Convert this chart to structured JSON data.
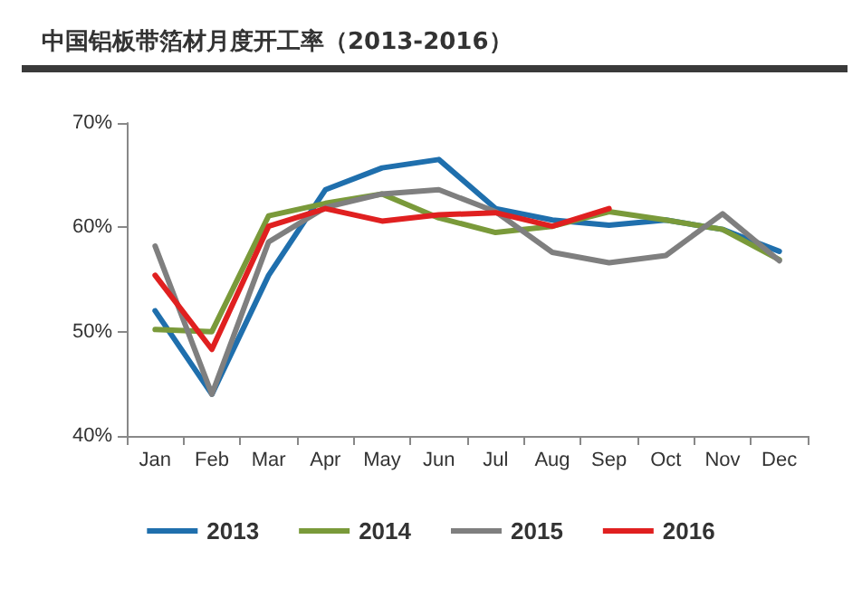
{
  "chart_data": {
    "type": "line",
    "title": "中国铝板带箔材月度开工率（2013-2016）",
    "categories": [
      "Jan",
      "Feb",
      "Mar",
      "Apr",
      "May",
      "Jun",
      "Jul",
      "Aug",
      "Sep",
      "Oct",
      "Nov",
      "Dec"
    ],
    "series": [
      {
        "name": "2013",
        "color": "#1f6fad",
        "values": [
          52.0,
          44.0,
          55.4,
          63.6,
          65.7,
          66.5,
          61.8,
          60.7,
          60.2,
          60.7,
          59.8,
          57.7
        ]
      },
      {
        "name": "2014",
        "color": "#7a9a3a",
        "values": [
          50.2,
          50.0,
          61.1,
          62.3,
          63.2,
          60.9,
          59.5,
          60.1,
          61.5,
          60.7,
          59.8,
          56.9
        ]
      },
      {
        "name": "2015",
        "color": "#7f7f7f",
        "values": [
          58.2,
          44.0,
          58.6,
          61.9,
          63.2,
          63.6,
          61.5,
          57.6,
          56.6,
          57.3,
          61.3,
          56.8
        ]
      },
      {
        "name": "2016",
        "color": "#e02020",
        "values": [
          55.4,
          48.3,
          60.1,
          61.8,
          60.6,
          61.2,
          61.4,
          60.1,
          61.8,
          null,
          null,
          null
        ]
      }
    ],
    "ylim": [
      40,
      70
    ],
    "yticks": [
      {
        "value": 40,
        "label": "40%"
      },
      {
        "value": 50,
        "label": "50%"
      },
      {
        "value": 60,
        "label": "60%"
      },
      {
        "value": 70,
        "label": "70%"
      }
    ],
    "grid": false,
    "legend": "bottom",
    "marker": "none",
    "line_style": "solid"
  }
}
